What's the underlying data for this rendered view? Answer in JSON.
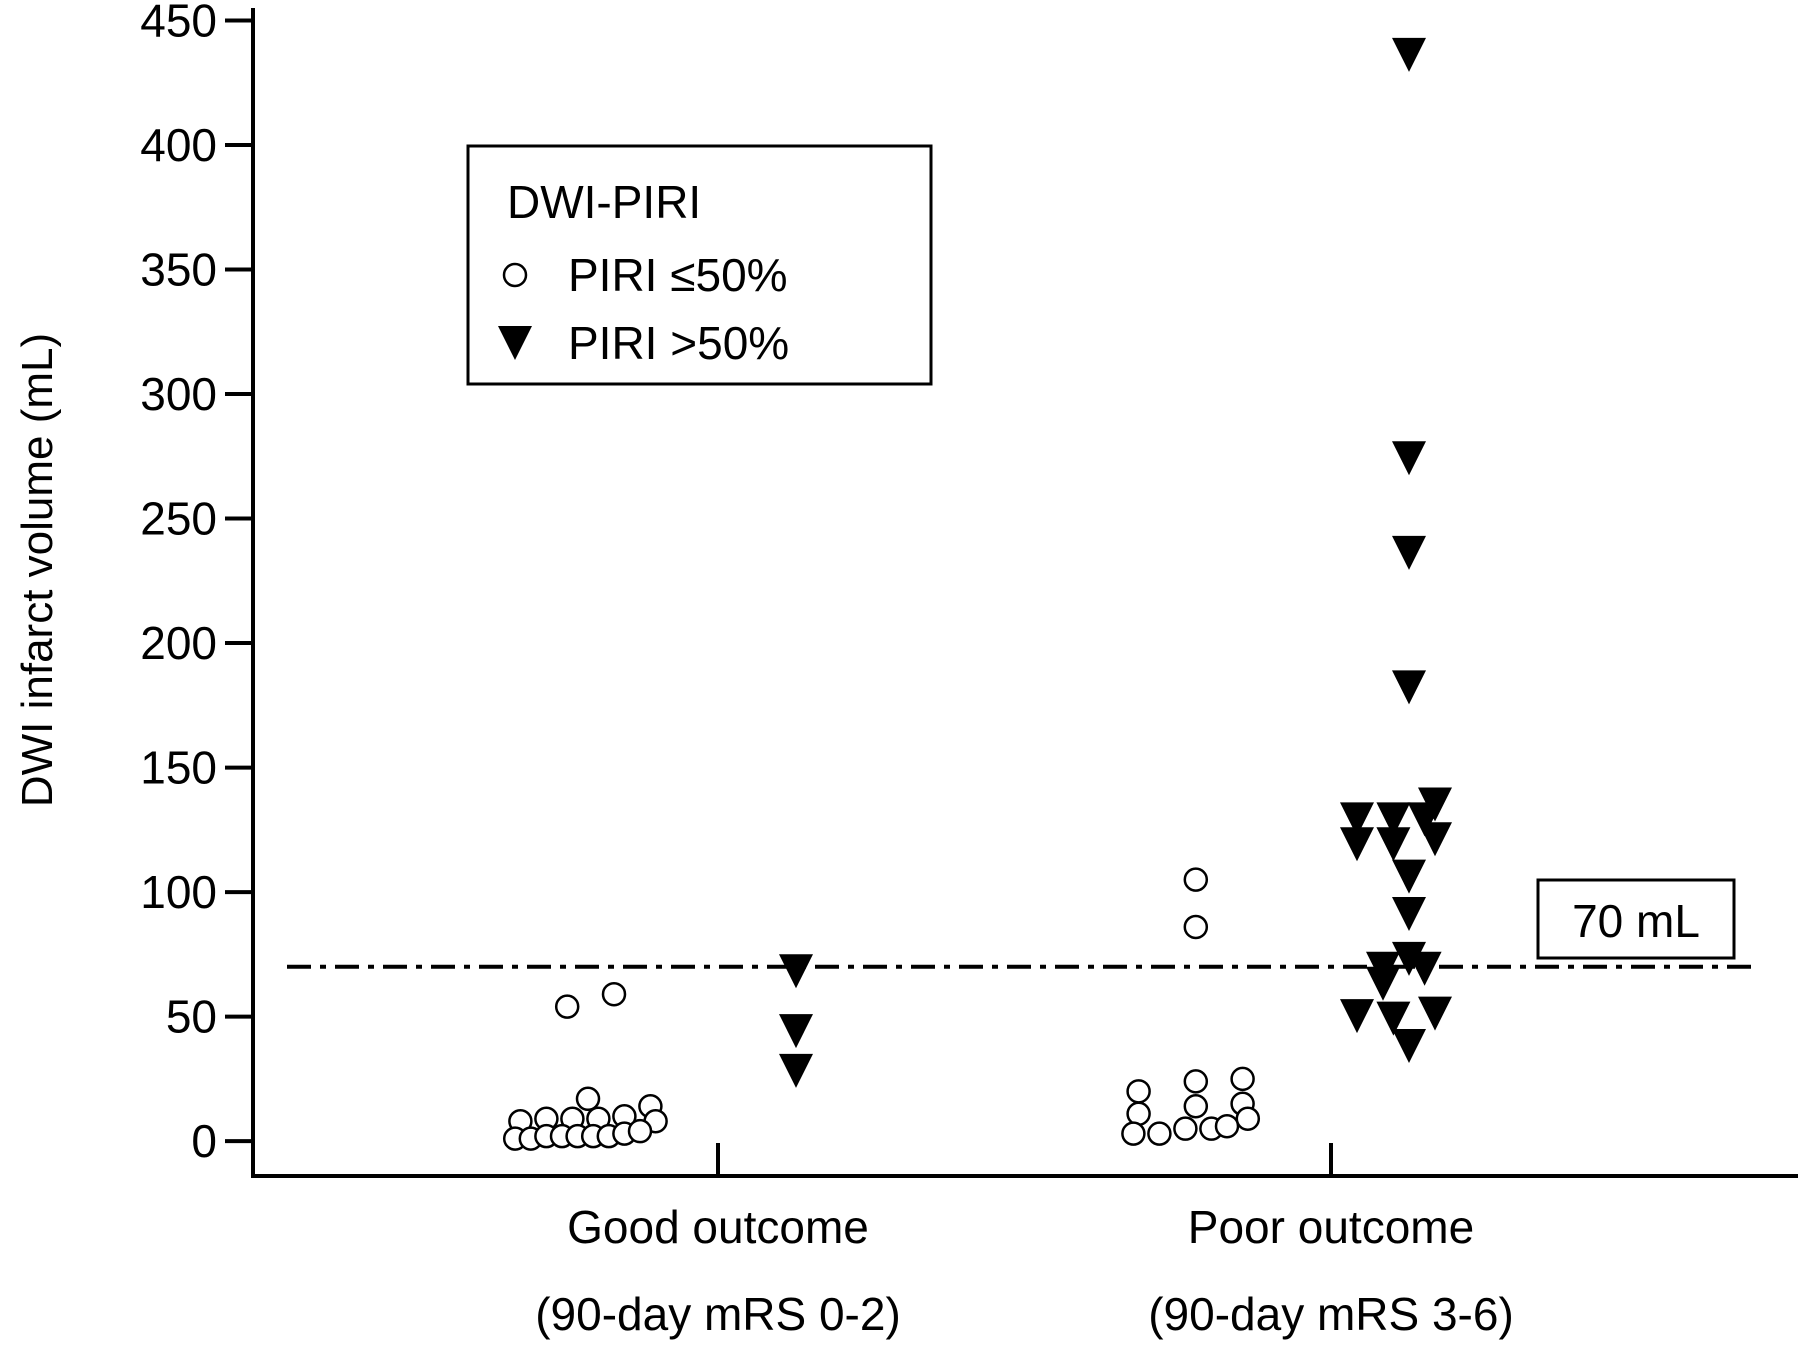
{
  "chart_data": {
    "type": "scatter",
    "ylabel": "DWI infarct volume (mL)",
    "ylim": [
      -14,
      455
    ],
    "yticks": [
      0,
      50,
      100,
      150,
      200,
      250,
      300,
      350,
      400,
      450
    ],
    "categories": [
      {
        "line1": "Good outcome",
        "line2": "(90-day mRS 0-2)"
      },
      {
        "line1": "Poor outcome",
        "line2": "(90-day mRS 3-6)"
      }
    ],
    "legend": {
      "title": "DWI-PIRI",
      "entries": [
        {
          "label": "PIRI ≤50%",
          "marker": "open-circle"
        },
        {
          "label": "PIRI >50%",
          "marker": "filled-down-triangle"
        }
      ]
    },
    "reference_line": {
      "value": 70,
      "label": "70 mL",
      "style": "dash-dot"
    },
    "series": [
      {
        "legend_label": "PIRI ≤50%",
        "marker": "open-circle",
        "points": [
          {
            "category": 0,
            "offset": -0.29,
            "y": 54
          },
          {
            "category": 0,
            "offset": -0.2,
            "y": 59
          },
          {
            "category": 0,
            "offset": -0.25,
            "y": 17
          },
          {
            "category": 0,
            "offset": -0.13,
            "y": 14
          },
          {
            "category": 0,
            "offset": -0.38,
            "y": 8
          },
          {
            "category": 0,
            "offset": -0.33,
            "y": 9
          },
          {
            "category": 0,
            "offset": -0.28,
            "y": 9
          },
          {
            "category": 0,
            "offset": -0.23,
            "y": 9
          },
          {
            "category": 0,
            "offset": -0.18,
            "y": 10
          },
          {
            "category": 0,
            "offset": -0.12,
            "y": 8
          },
          {
            "category": 0,
            "offset": -0.39,
            "y": 1
          },
          {
            "category": 0,
            "offset": -0.36,
            "y": 1
          },
          {
            "category": 0,
            "offset": -0.33,
            "y": 2
          },
          {
            "category": 0,
            "offset": -0.3,
            "y": 2
          },
          {
            "category": 0,
            "offset": -0.27,
            "y": 2
          },
          {
            "category": 0,
            "offset": -0.24,
            "y": 2
          },
          {
            "category": 0,
            "offset": -0.21,
            "y": 2
          },
          {
            "category": 0,
            "offset": -0.18,
            "y": 3
          },
          {
            "category": 0,
            "offset": -0.15,
            "y": 4
          },
          {
            "category": 1,
            "offset": -0.26,
            "y": 105
          },
          {
            "category": 1,
            "offset": -0.26,
            "y": 86
          },
          {
            "category": 1,
            "offset": -0.37,
            "y": 20
          },
          {
            "category": 1,
            "offset": -0.26,
            "y": 24
          },
          {
            "category": 1,
            "offset": -0.17,
            "y": 25
          },
          {
            "category": 1,
            "offset": -0.37,
            "y": 11
          },
          {
            "category": 1,
            "offset": -0.26,
            "y": 14
          },
          {
            "category": 1,
            "offset": -0.17,
            "y": 15
          },
          {
            "category": 1,
            "offset": -0.16,
            "y": 9
          },
          {
            "category": 1,
            "offset": -0.38,
            "y": 3
          },
          {
            "category": 1,
            "offset": -0.33,
            "y": 3
          },
          {
            "category": 1,
            "offset": -0.28,
            "y": 5
          },
          {
            "category": 1,
            "offset": -0.23,
            "y": 5
          },
          {
            "category": 1,
            "offset": -0.2,
            "y": 6
          }
        ]
      },
      {
        "legend_label": "PIRI >50%",
        "marker": "filled-down-triangle",
        "points": [
          {
            "category": 0,
            "offset": 0.15,
            "y": 69
          },
          {
            "category": 0,
            "offset": 0.15,
            "y": 45
          },
          {
            "category": 0,
            "offset": 0.15,
            "y": 29
          },
          {
            "category": 1,
            "offset": 0.15,
            "y": 437
          },
          {
            "category": 1,
            "offset": 0.15,
            "y": 275
          },
          {
            "category": 1,
            "offset": 0.15,
            "y": 237
          },
          {
            "category": 1,
            "offset": 0.15,
            "y": 183
          },
          {
            "category": 1,
            "offset": 0.2,
            "y": 136
          },
          {
            "category": 1,
            "offset": 0.05,
            "y": 130
          },
          {
            "category": 1,
            "offset": 0.12,
            "y": 130
          },
          {
            "category": 1,
            "offset": 0.18,
            "y": 130
          },
          {
            "category": 1,
            "offset": 0.05,
            "y": 120
          },
          {
            "category": 1,
            "offset": 0.12,
            "y": 120
          },
          {
            "category": 1,
            "offset": 0.2,
            "y": 122
          },
          {
            "category": 1,
            "offset": 0.15,
            "y": 107
          },
          {
            "category": 1,
            "offset": 0.15,
            "y": 92
          },
          {
            "category": 1,
            "offset": 0.15,
            "y": 74
          },
          {
            "category": 1,
            "offset": 0.1,
            "y": 70
          },
          {
            "category": 1,
            "offset": 0.18,
            "y": 70
          },
          {
            "category": 1,
            "offset": 0.1,
            "y": 64
          },
          {
            "category": 1,
            "offset": 0.05,
            "y": 51
          },
          {
            "category": 1,
            "offset": 0.12,
            "y": 50
          },
          {
            "category": 1,
            "offset": 0.2,
            "y": 52
          },
          {
            "category": 1,
            "offset": 0.15,
            "y": 39
          }
        ]
      }
    ]
  }
}
